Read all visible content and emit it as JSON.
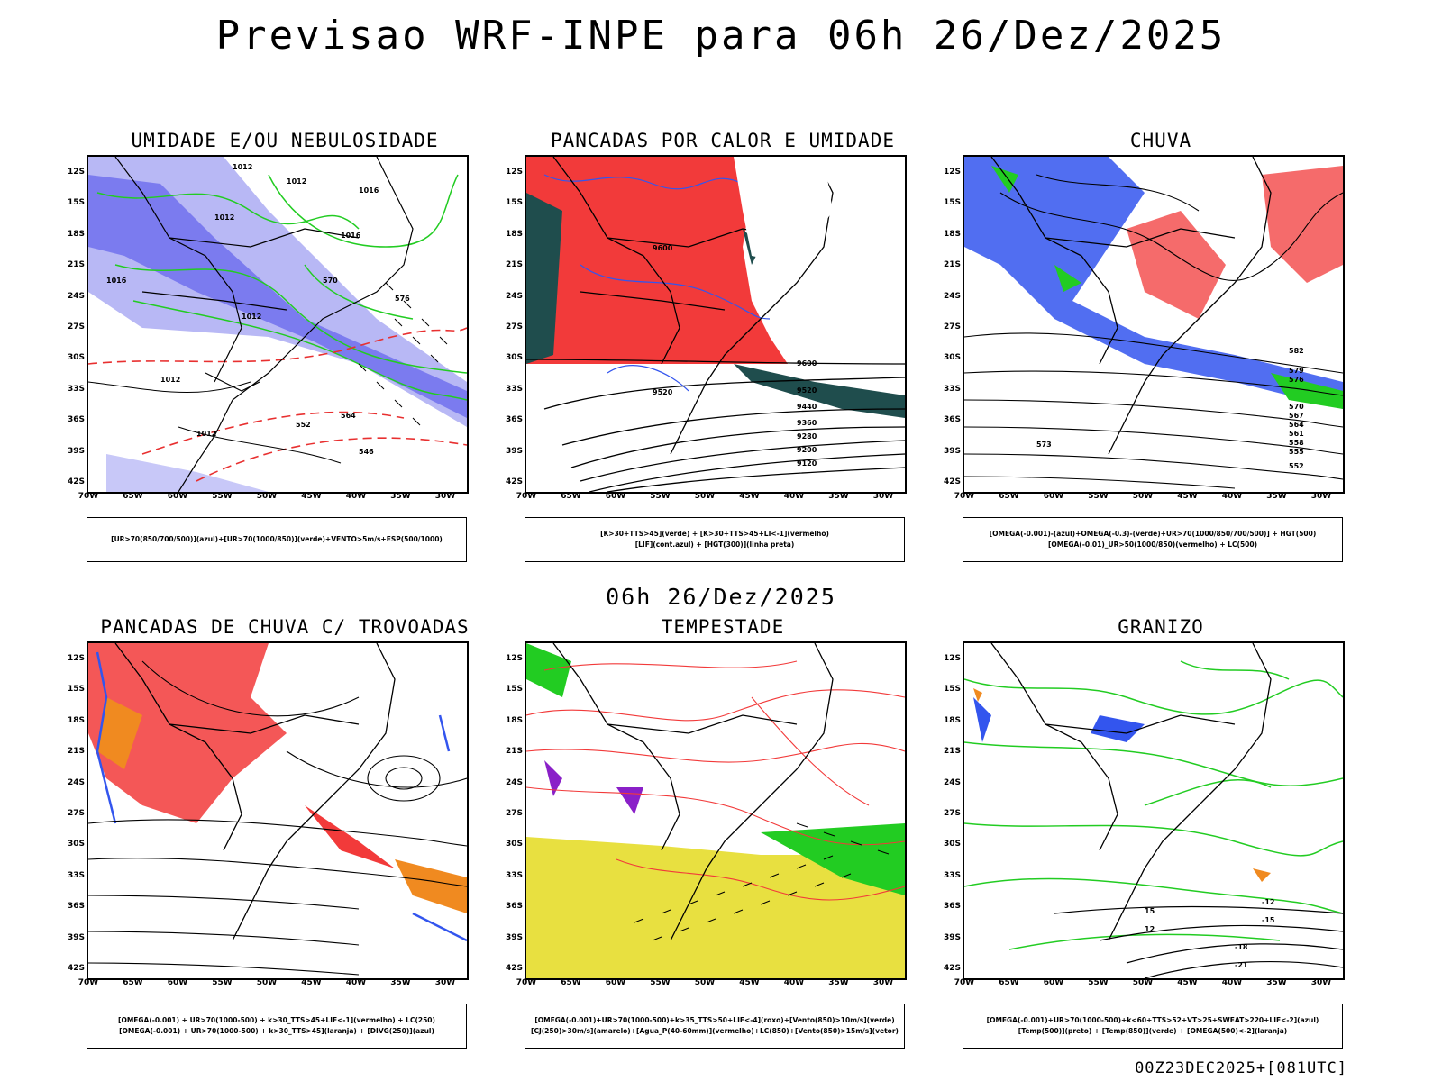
{
  "main_title": "Previsao WRF-INPE  para 06h 26/Dez/2025",
  "mid_title": "06h 26/Dez/2025",
  "footer": "00Z23DEC2025+[081UTC]",
  "lat_labels": [
    "12S",
    "15S",
    "18S",
    "21S",
    "24S",
    "27S",
    "30S",
    "33S",
    "36S",
    "39S",
    "42S"
  ],
  "lon_labels": [
    "70W",
    "65W",
    "60W",
    "55W",
    "50W",
    "45W",
    "40W",
    "35W",
    "30W"
  ],
  "panels": [
    {
      "title": "UMIDADE E/OU NEBULOSIDADE",
      "legend": [
        "[UR>70(850/700/500)](azul)+[UR>70(1000/850)](verde)+VENTO>5m/s+ESP(500/1000)"
      ]
    },
    {
      "title": "PANCADAS POR CALOR E UMIDADE",
      "legend": [
        "[K>30+TTS>45](verde) + [K>30+TTS>45+LI<-1](vermelho)",
        "[LIF](cont.azul) + [HGT(300)](linha preta)"
      ]
    },
    {
      "title": "CHUVA",
      "legend": [
        "[OMEGA(-0.001)-(azul)+OMEGA(-0.3)-(verde)+UR>70(1000/850/700/500)] + HGT(500)",
        "[OMEGA(-0.01)_UR>50(1000/850)(vermelho) + LC(500)"
      ]
    },
    {
      "title": "PANCADAS DE CHUVA C/ TROVOADAS",
      "legend": [
        "[OMEGA(-0.001) + UR>70(1000-500) + k>30_TTS>45+LIF<-1](vermelho) + LC(250)",
        "[OMEGA(-0.001) + UR>70(1000-500) + k>30_TTS>45](laranja) + [DIVG(250)](azul)"
      ]
    },
    {
      "title": "TEMPESTADE",
      "legend": [
        "[OMEGA(-0.001)+UR>70(1000-500)+k>35_TTS>50+LIF<-4](roxo)+[Vento(850)>10m/s](verde)",
        "[CJ(250)>30m/s](amarelo)+[Agua_P(40-60mm)](vermelho)+LC(850)+[Vento(850)>15m/s](vetor)"
      ]
    },
    {
      "title": "GRANIZO",
      "legend": [
        "[OMEGA(-0.001)+UR>70(1000-500)+k<60+TTS>52+VT>25+SWEAT>220+LIF<-2](azul)",
        "[Temp(500)](preto) + [Temp(850)](verde) + [OMEGA(500)<-2](laranja)"
      ]
    }
  ],
  "contour_labels": {
    "p1": [
      "1012",
      "1012",
      "1012",
      "1016",
      "1016",
      "1016",
      "1012",
      "570",
      "576",
      "564",
      "552",
      "546",
      "1012",
      "1012"
    ],
    "p2": [
      "9600",
      "9520",
      "9440",
      "9360",
      "9280",
      "9200",
      "9120",
      "9600",
      "9520"
    ],
    "p3": [
      "582",
      "579",
      "576",
      "573",
      "570",
      "567",
      "564",
      "561",
      "558",
      "555",
      "552"
    ],
    "p6": [
      "-12",
      "-15",
      "-18",
      "-21",
      "15",
      "12"
    ]
  },
  "colors": {
    "blue": "#6b6bef",
    "lightblue": "#b8b8f5",
    "green": "#22cc22",
    "red": "#f23a3a",
    "teal": "#1f4d4d",
    "yellow": "#e8e040",
    "orange": "#f08a20",
    "purple": "#8a20c8"
  }
}
